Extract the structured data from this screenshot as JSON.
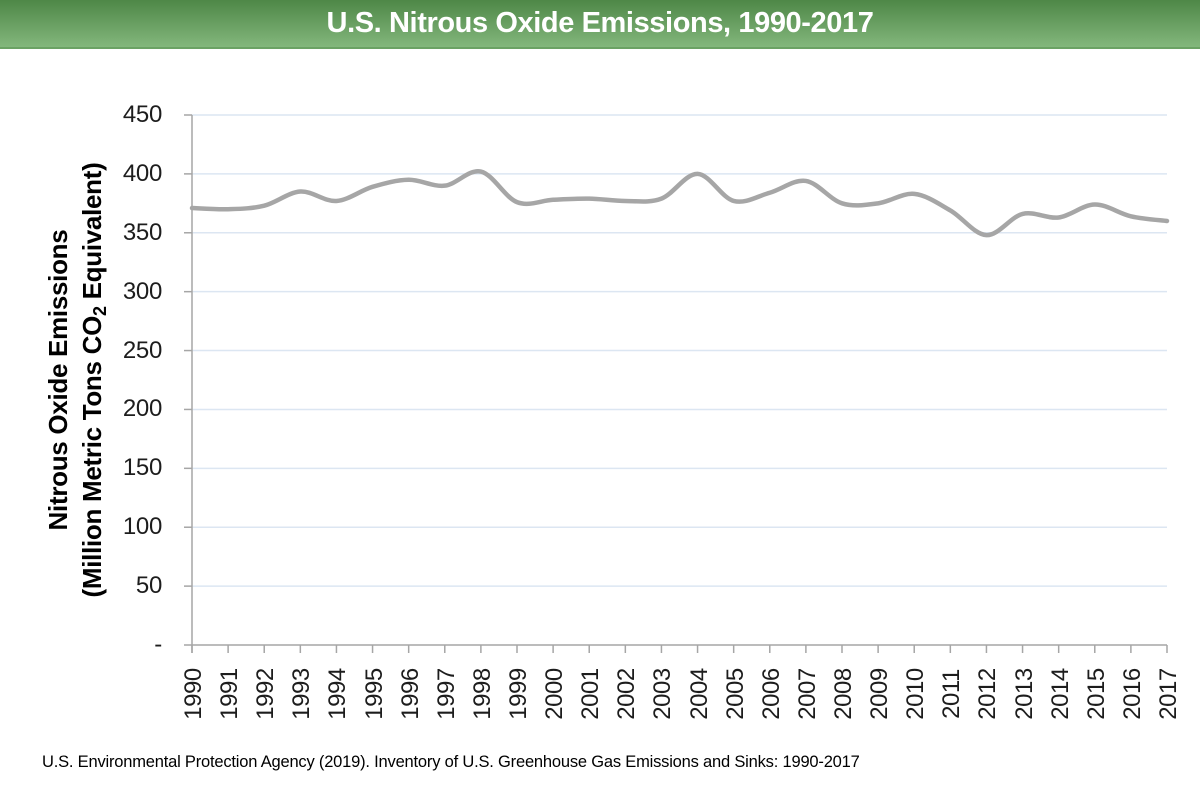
{
  "header": {
    "title": "U.S. Nitrous Oxide Emissions, 1990-2017"
  },
  "footer": {
    "source": "U.S. Environmental Protection Agency (2019). Inventory of U.S. Greenhouse Gas Emissions and Sinks: 1990-2017"
  },
  "chart_data": {
    "type": "line",
    "title": "U.S. Nitrous Oxide Emissions, 1990-2017",
    "categories": [
      "1990",
      "1991",
      "1992",
      "1993",
      "1994",
      "1995",
      "1996",
      "1997",
      "1998",
      "1999",
      "2000",
      "2001",
      "2002",
      "2003",
      "2004",
      "2005",
      "2006",
      "2007",
      "2008",
      "2009",
      "2010",
      "2011",
      "2012",
      "2013",
      "2014",
      "2015",
      "2016",
      "2017"
    ],
    "series": [
      {
        "name": "U.S. Nitrous Oxide Emissions",
        "values": [
          371,
          370,
          373,
          385,
          377,
          389,
          395,
          390,
          402,
          376,
          378,
          379,
          377,
          379,
          400,
          377,
          384,
          394,
          375,
          375,
          383,
          369,
          348,
          366,
          363,
          374,
          364,
          360
        ]
      }
    ],
    "xlabel": "",
    "ylabel_line1": "Nitrous Oxide Emissions",
    "ylabel_line2_pre": "(Million Metric Tons CO",
    "ylabel_line2_sub": "2",
    "ylabel_line2_post": " Equivalent)",
    "ylim": [
      0,
      450
    ],
    "ytick_step": 50,
    "zero_tick_label": "-",
    "grid": true,
    "legend_position": "none",
    "smooth_line": true,
    "line_color": "#a6a6a6",
    "gridline_color": "#dce6f2",
    "axis_color": "#a6a6a6"
  }
}
